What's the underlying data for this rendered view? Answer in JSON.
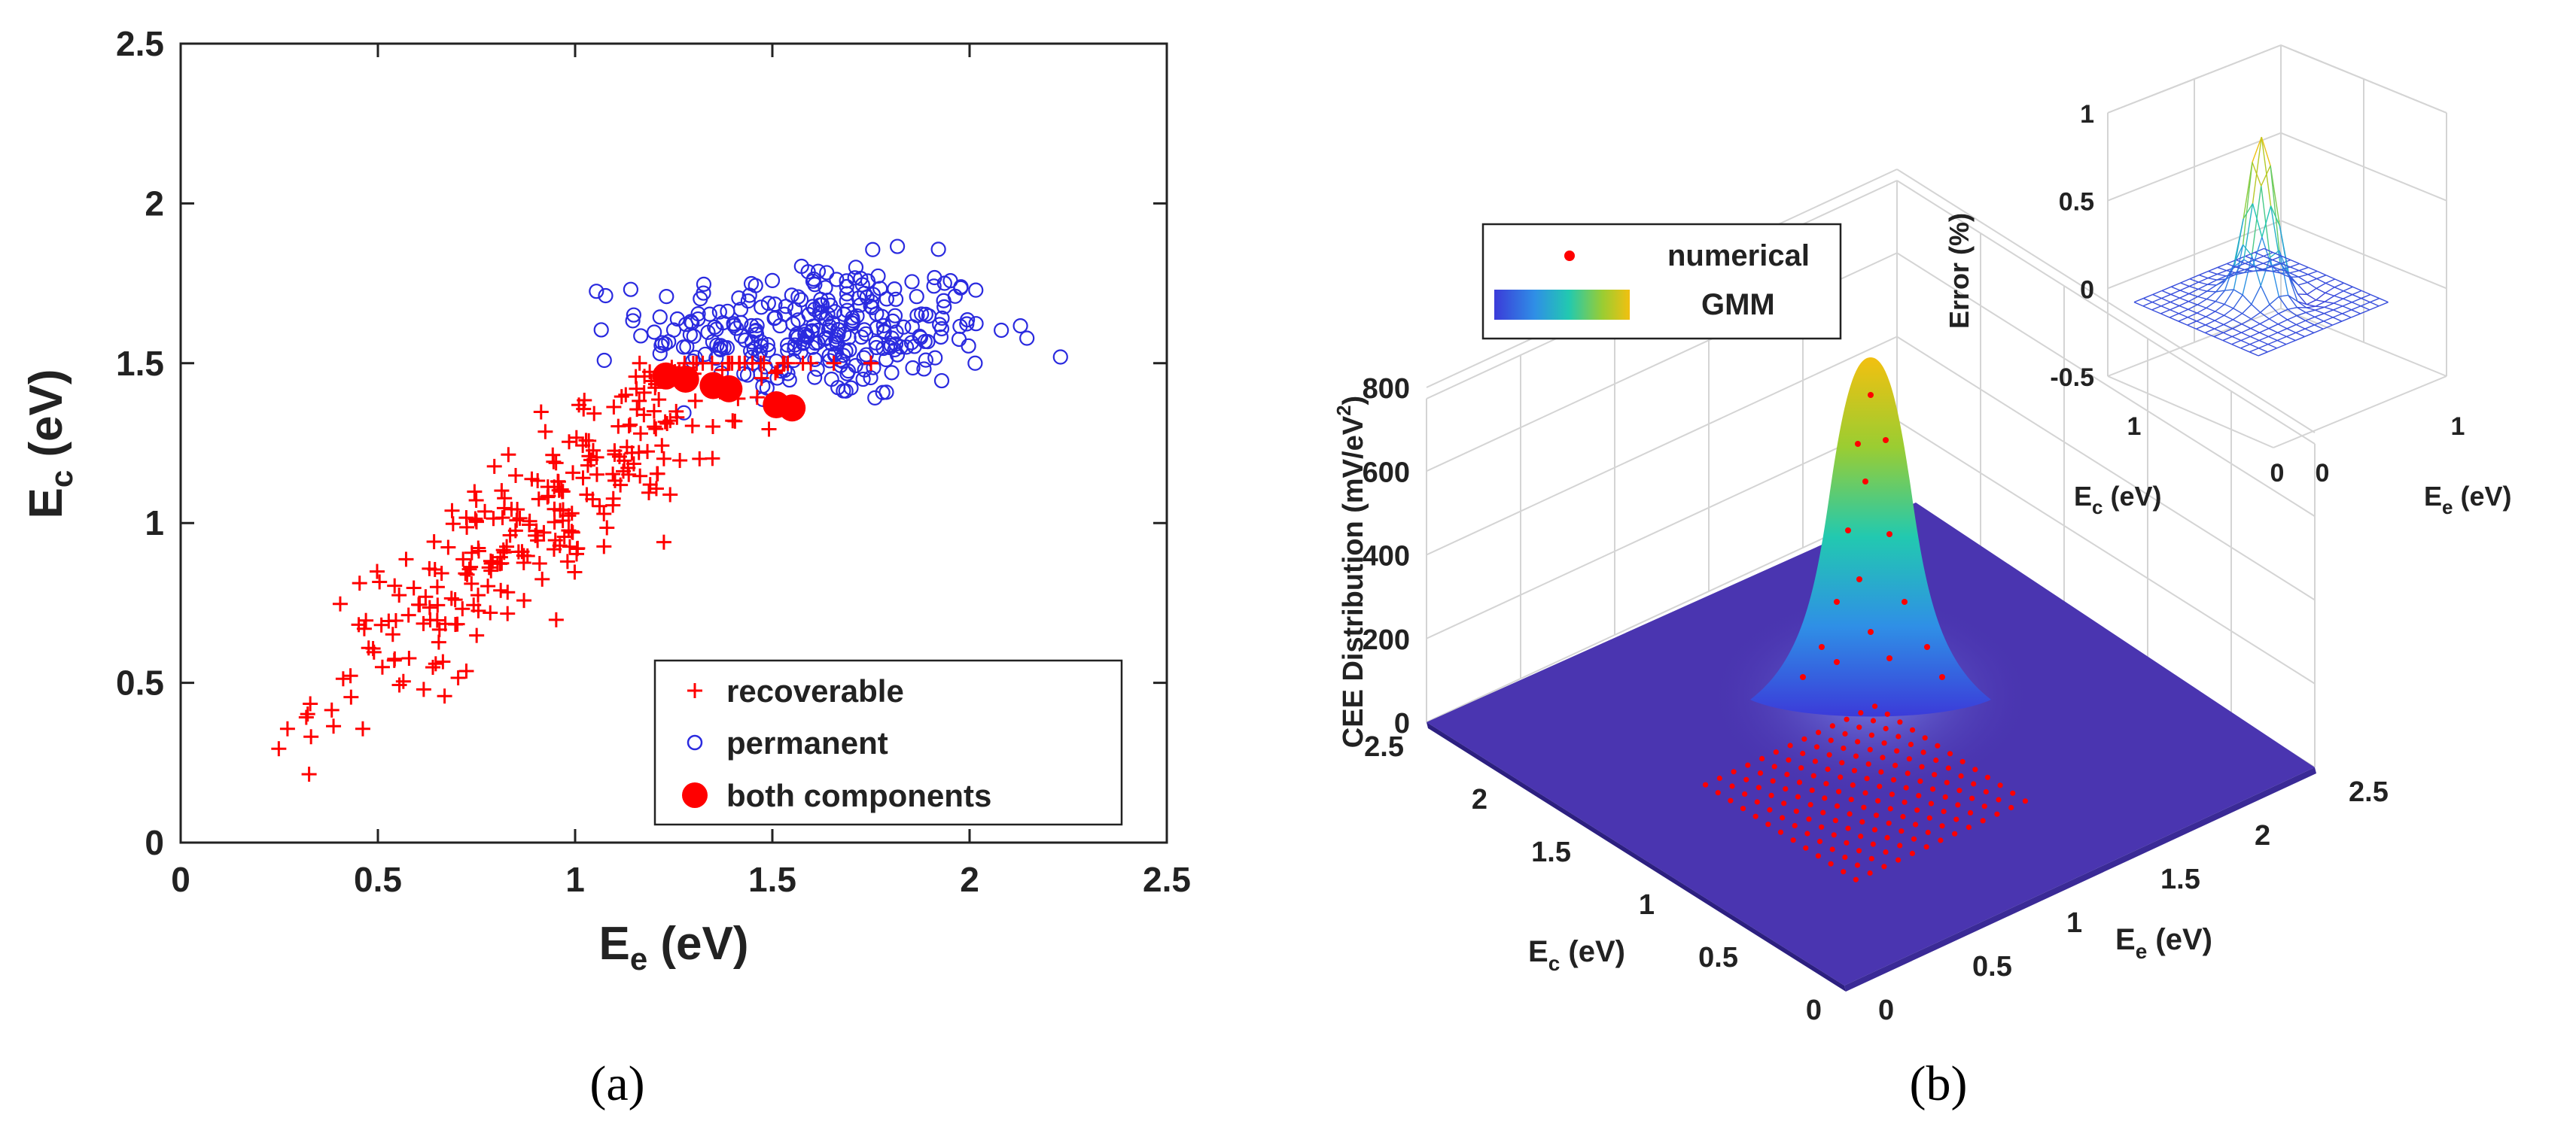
{
  "chart_data": [
    {
      "type": "scatter",
      "panel_label": "(a)",
      "xlabel": "E",
      "xlabel_sub": "e",
      "xlabel_unit": " (eV)",
      "ylabel": "E",
      "ylabel_sub": "c",
      "ylabel_unit": " (eV)",
      "xlim": [
        0,
        2.5
      ],
      "ylim": [
        0,
        2.5
      ],
      "xticks": [
        "0",
        "0.5",
        "1",
        "1.5",
        "2",
        "2.5"
      ],
      "yticks": [
        "0",
        "0.5",
        "1",
        "1.5",
        "2",
        "2.5"
      ],
      "legend": [
        "recoverable",
        "permanent",
        "both components"
      ],
      "legend_position": "bottom-right",
      "series": [
        {
          "name": "recoverable",
          "marker": "plus",
          "color": "#ff0000",
          "description": "approx. 300 points, Ee ~ N(0.95, 0.30), Ec ≈ 0.15 + 0.95·Ee + noise (σ 0.13)"
        },
        {
          "name": "permanent",
          "marker": "open-circle",
          "color": "#2a2adf",
          "description": "approx. 300 points, Ee ~ N(1.62, 0.22), Ec ~ N(1.60, 0.11)"
        },
        {
          "name": "both components",
          "marker": "filled-circle",
          "color": "#ff0000",
          "x": [
            1.23,
            1.28,
            1.35,
            1.39,
            1.51,
            1.55
          ],
          "y": [
            1.46,
            1.45,
            1.43,
            1.42,
            1.37,
            1.36
          ]
        }
      ]
    },
    {
      "type": "surface3d",
      "panel_label": "(b)",
      "zlabel": "CEE Distribution (mV/eV",
      "zlabel_sup": "2",
      "zlabel_close": ")",
      "xlabel": "E",
      "xlabel_sub": "c",
      "xlabel_unit": " (eV)",
      "ylabel": "E",
      "ylabel_sub": "e",
      "ylabel_unit": " (eV)",
      "zticks": [
        "0",
        "200",
        "400",
        "600",
        "800"
      ],
      "ec_ticks": [
        "2.5",
        "2",
        "1.5",
        "1",
        "0.5",
        "0"
      ],
      "ee_ticks": [
        "0",
        "0.5",
        "1",
        "1.5",
        "2",
        "2.5"
      ],
      "zlim": [
        0,
        800
      ],
      "peak": {
        "Ee": 1.6,
        "Ec": 1.6,
        "value": 790
      },
      "legend": [
        "numerical",
        "GMM"
      ],
      "legend_position": "top-left",
      "surface_color": "#4a35b0",
      "inset": {
        "type": "mesh3d",
        "zlabel": "Error (%)",
        "zticks": [
          "-0.5",
          "0",
          "0.5",
          "1"
        ],
        "zlim": [
          -0.5,
          1
        ],
        "ec_ticks": [
          "1",
          "0"
        ],
        "ee_ticks": [
          "0",
          "1"
        ],
        "xlabel": "E",
        "xlabel_sub": "c",
        "xlabel_unit": " (eV)",
        "ylabel": "E",
        "ylabel_sub": "e",
        "ylabel_unit": " (eV)",
        "peak_error": 0.9
      }
    }
  ]
}
